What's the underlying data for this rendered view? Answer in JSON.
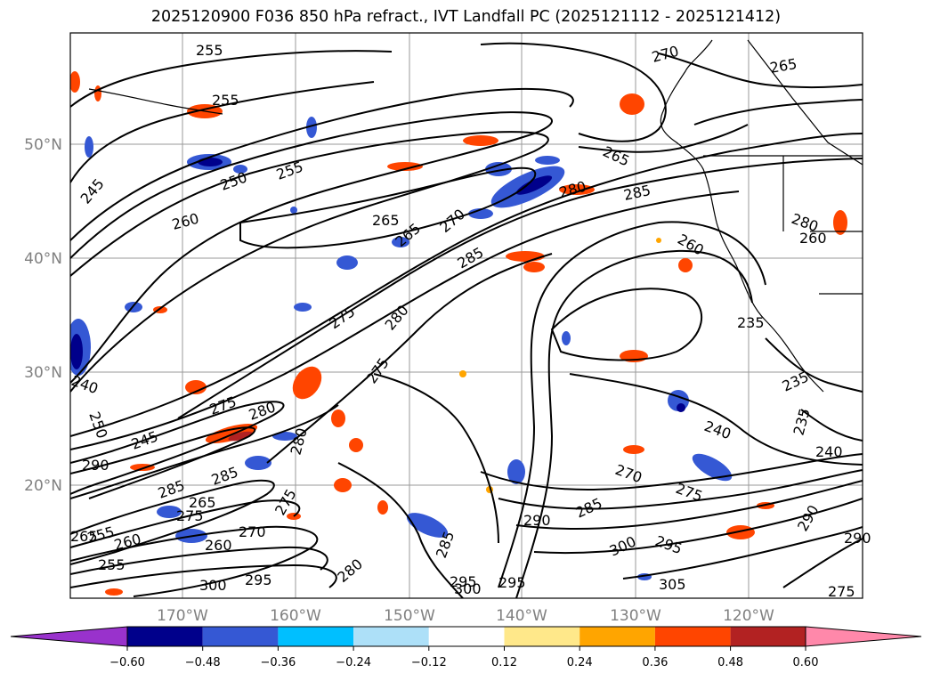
{
  "title": "2025120900 F036 850 hPa refract., IVT Landfall PC (2025121112 - 2025121412)",
  "lat_labels": [
    "50°N",
    "40°N",
    "30°N",
    "20°N"
  ],
  "lon_labels": [
    "170°W",
    "160°W",
    "150°W",
    "140°W",
    "130°W",
    "120°W"
  ],
  "colorbar": {
    "colors": [
      "#9932CC",
      "#00008B",
      "#3558D4",
      "#00BFFF",
      "#ADE0F8",
      "#FFFFFF",
      "#FFE88A",
      "#FFA500",
      "#FF4500",
      "#B22222",
      "#FF88AA"
    ],
    "ticks": [
      "−0.60",
      "−0.48",
      "−0.36",
      "−0.24",
      "−0.12",
      "0.12",
      "0.24",
      "0.36",
      "0.48",
      "0.60"
    ]
  },
  "contour_labels": [
    "255",
    "255",
    "245",
    "250",
    "255",
    "260",
    "265",
    "265",
    "270",
    "280",
    "285",
    "285",
    "275",
    "280",
    "275",
    "275",
    "280",
    "280",
    "240",
    "250",
    "245",
    "290",
    "285",
    "285",
    "275",
    "255",
    "265",
    "260",
    "270",
    "275",
    "265",
    "260",
    "255",
    "300",
    "295",
    "280",
    "285",
    "295",
    "300",
    "295",
    "290",
    "285",
    "290",
    "300",
    "295",
    "305",
    "270",
    "275",
    "235",
    "240",
    "235",
    "240",
    "235",
    "290",
    "275",
    "265",
    "270",
    "265",
    "260",
    "280",
    "260"
  ]
}
